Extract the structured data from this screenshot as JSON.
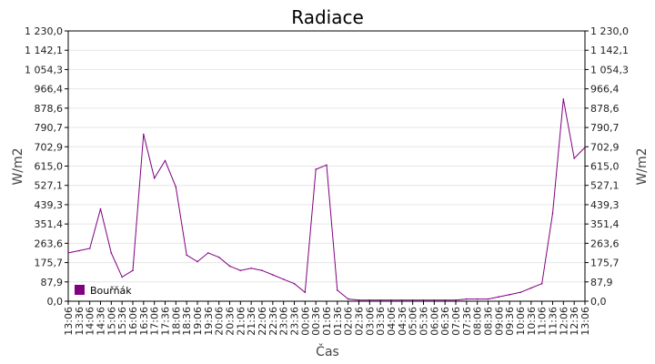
{
  "chart_data": {
    "type": "line",
    "title": "Radiace",
    "xlabel": "Čas",
    "ylabel": "W/m2",
    "ylim": [
      0,
      1230
    ],
    "y_ticks": [
      "0,0",
      "87,9",
      "175,7",
      "263,6",
      "351,4",
      "439,3",
      "527,1",
      "615,0",
      "702,9",
      "790,7",
      "878,6",
      "966,4",
      "1 054,3",
      "1 142,1",
      "1 230,0"
    ],
    "y_tick_values": [
      0,
      87.9,
      175.7,
      263.6,
      351.4,
      439.3,
      527.1,
      615.0,
      702.9,
      790.7,
      878.6,
      966.4,
      1054.3,
      1142.1,
      1230.0
    ],
    "x_ticks": [
      "13:06",
      "13:36",
      "14:06",
      "14:36",
      "15:06",
      "15:36",
      "16:06",
      "16:36",
      "17:06",
      "17:36",
      "18:06",
      "18:36",
      "19:06",
      "19:36",
      "20:06",
      "20:36",
      "21:06",
      "21:36",
      "22:06",
      "22:36",
      "23:06",
      "23:36",
      "00:06",
      "00:36",
      "01:06",
      "01:36",
      "02:06",
      "02:36",
      "03:06",
      "03:36",
      "04:06",
      "04:36",
      "05:06",
      "05:36",
      "06:06",
      "06:36",
      "07:06",
      "07:36",
      "08:06",
      "08:36",
      "09:06",
      "09:36",
      "10:06",
      "10:36",
      "11:06",
      "11:36",
      "12:06",
      "12:36",
      "13:06"
    ],
    "grid": true,
    "legend_position": "bottom-left",
    "colors": {
      "series": "#800080",
      "grid": "#e6e6e6",
      "axis": "#000000"
    },
    "series": [
      {
        "name": "Bouřňák",
        "color": "#800080",
        "x": [
          0,
          0.5,
          1,
          1.5,
          2,
          2.5,
          3,
          3.5,
          4,
          4.5,
          5,
          5.5,
          6,
          6.5,
          7,
          7.5,
          8,
          8.5,
          9,
          9.5,
          10,
          10.5,
          11,
          11.5,
          12,
          12.5,
          13,
          13.5,
          14,
          14.5,
          15,
          15.5,
          16,
          16.5,
          17,
          17.5,
          18,
          18.5,
          19,
          19.5,
          20,
          20.5,
          21,
          21.5,
          22,
          22.5,
          23,
          23.5,
          24
        ],
        "values": [
          220,
          230,
          240,
          420,
          220,
          110,
          140,
          760,
          560,
          640,
          520,
          210,
          180,
          220,
          200,
          160,
          140,
          150,
          140,
          120,
          100,
          80,
          40,
          600,
          620,
          50,
          10,
          5,
          5,
          5,
          5,
          5,
          5,
          5,
          5,
          5,
          5,
          10,
          10,
          10,
          20,
          30,
          40,
          60,
          80,
          400,
          920,
          650,
          700
        ]
      }
    ]
  }
}
